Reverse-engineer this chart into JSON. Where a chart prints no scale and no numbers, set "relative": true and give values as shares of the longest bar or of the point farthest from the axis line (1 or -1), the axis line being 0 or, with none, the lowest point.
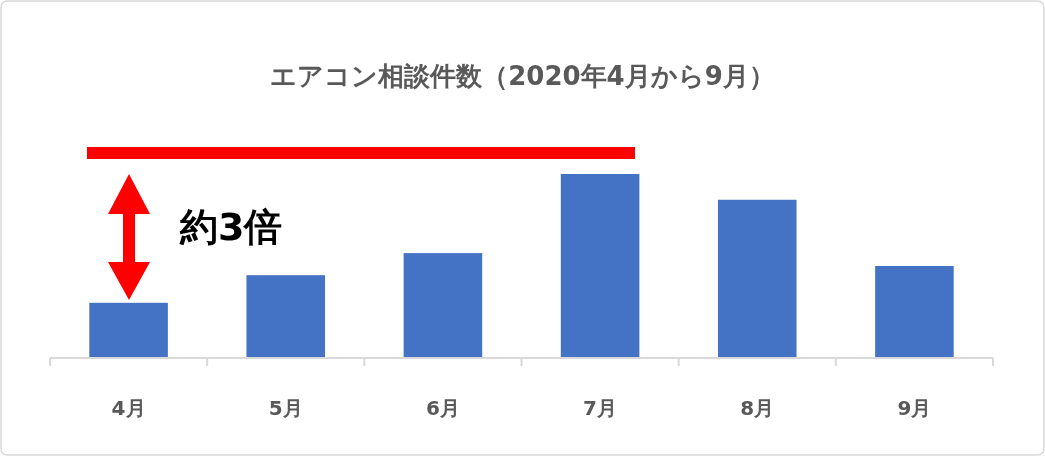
{
  "chart_data": {
    "type": "bar",
    "title": "エアコン相談件数（2020年4月から9月）",
    "relative": true,
    "color": "#4472c4",
    "categories": [
      "4月",
      "5月",
      "6月",
      "7月",
      "8月",
      "9月"
    ],
    "values": [
      0.3,
      0.45,
      0.57,
      1,
      0.86,
      0.5
    ],
    "annotations": [
      "約3倍"
    ]
  }
}
